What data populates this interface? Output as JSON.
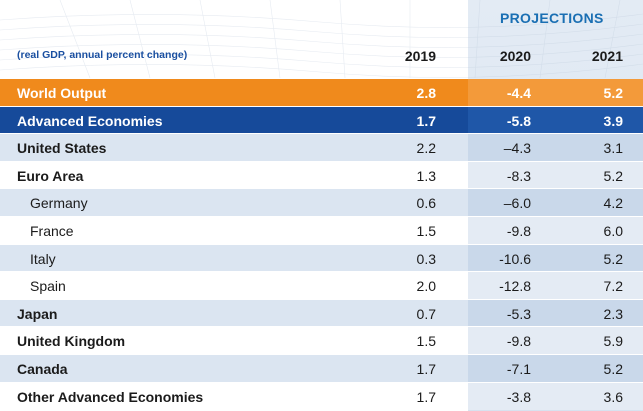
{
  "header": {
    "projections_label": "PROJECTIONS",
    "subtitle": "(real GDP, annual percent change)",
    "columns": [
      "2019",
      "2020",
      "2021"
    ]
  },
  "colors": {
    "world_output_row": "#f08a1c",
    "advanced_row": "#164a9a",
    "shade_row": "#dbe5f1",
    "label_blue": "#1a6fb3"
  },
  "rows": [
    {
      "name": "World Output",
      "values": [
        "2.8",
        "-4.4",
        "5.2"
      ]
    },
    {
      "name": "Advanced Economies",
      "values": [
        "1.7",
        "-5.8",
        "3.9"
      ]
    },
    {
      "name": "United States",
      "values": [
        "2.2",
        "–4.3",
        "3.1"
      ]
    },
    {
      "name": "Euro Area",
      "values": [
        "1.3",
        "-8.3",
        "5.2"
      ]
    },
    {
      "name": "Germany",
      "values": [
        "0.6",
        "–6.0",
        "4.2"
      ]
    },
    {
      "name": "France",
      "values": [
        "1.5",
        "-9.8",
        "6.0"
      ]
    },
    {
      "name": "Italy",
      "values": [
        "0.3",
        "-10.6",
        "5.2"
      ]
    },
    {
      "name": "Spain",
      "values": [
        "2.0",
        "-12.8",
        "7.2"
      ]
    },
    {
      "name": "Japan",
      "values": [
        "0.7",
        "-5.3",
        "2.3"
      ]
    },
    {
      "name": "United Kingdom",
      "values": [
        "1.5",
        "-9.8",
        "5.9"
      ]
    },
    {
      "name": "Canada",
      "values": [
        "1.7",
        "-7.1",
        "5.2"
      ]
    },
    {
      "name": "Other Advanced Economies",
      "values": [
        "1.7",
        "-3.8",
        "3.6"
      ]
    }
  ]
}
